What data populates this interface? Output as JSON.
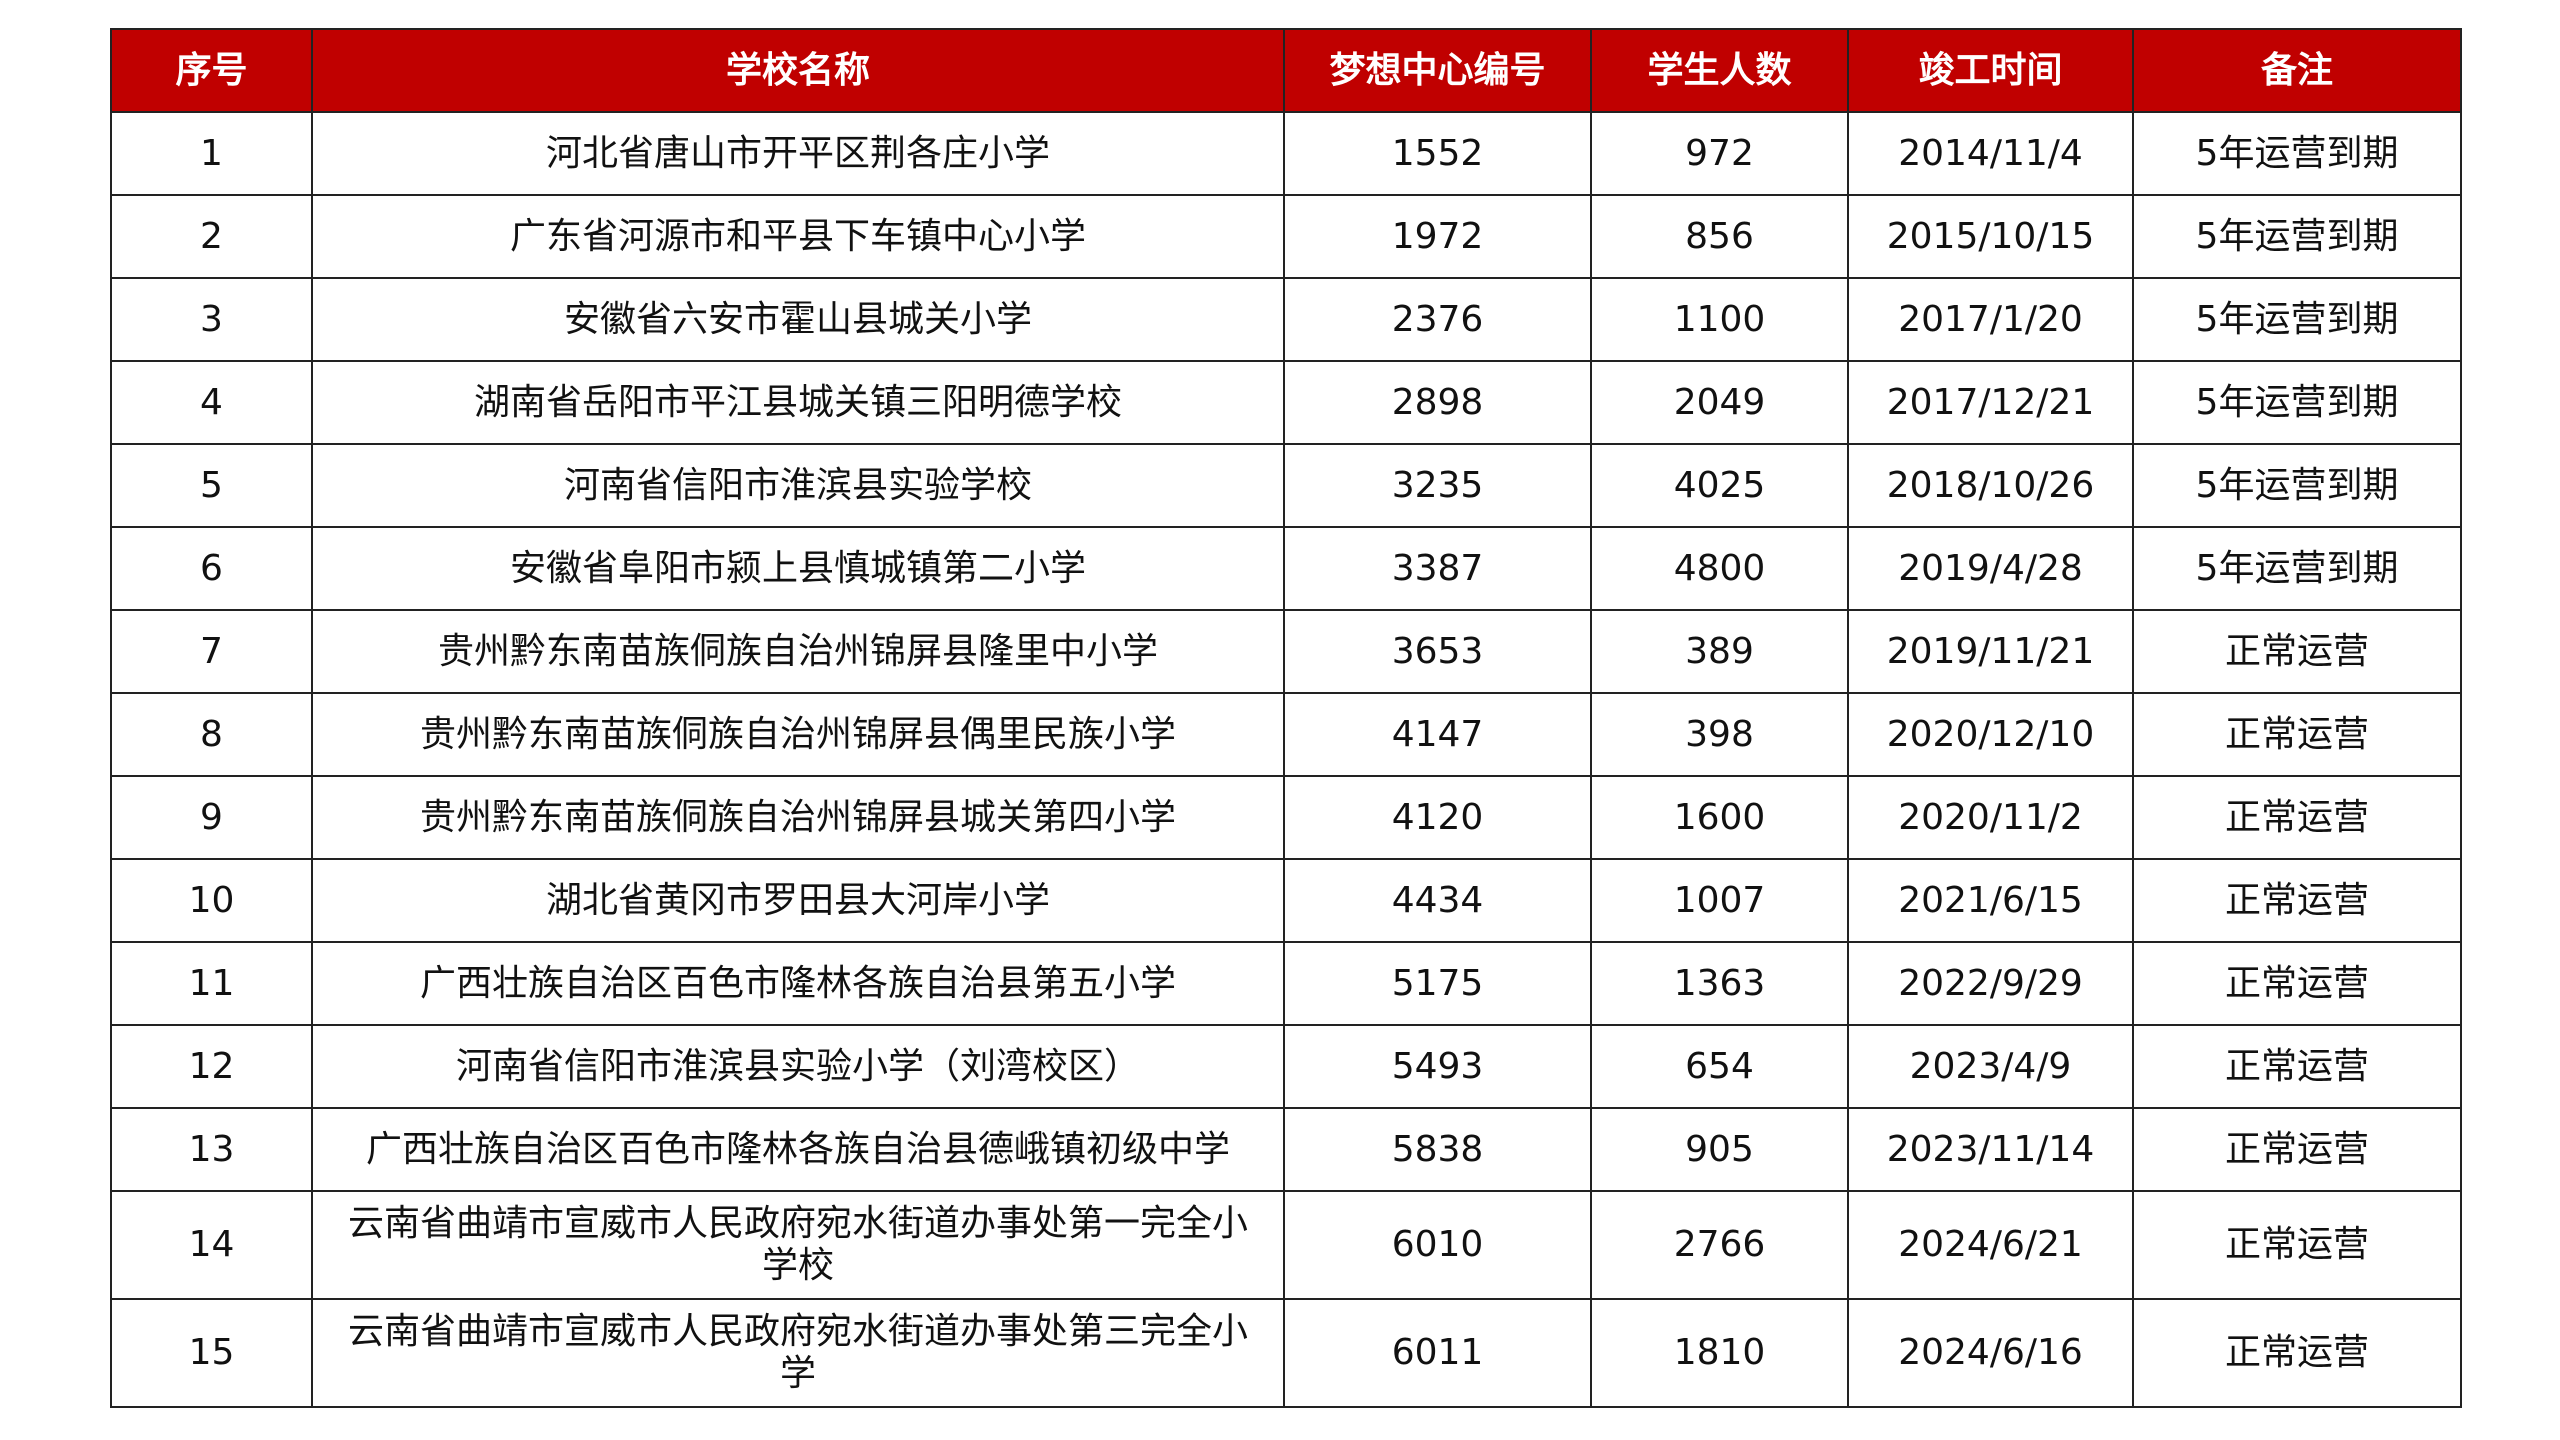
{
  "table": {
    "header": [
      "序号",
      "学校名称",
      "梦想中心编号",
      "学生人数",
      "竣工时间",
      "备注"
    ],
    "rows": [
      [
        1,
        "河北省唐山市开平区荆各庄小学",
        1552,
        972,
        "2014/11/4",
        "5年运营到期"
      ],
      [
        2,
        "广东省河源市和平县下车镇中心小学",
        1972,
        856,
        "2015/10/15",
        "5年运营到期"
      ],
      [
        3,
        "安徽省六安市霍山县城关小学",
        2376,
        1100,
        "2017/1/20",
        "5年运营到期"
      ],
      [
        4,
        "湖南省岳阳市平江县城关镇三阳明德学校",
        2898,
        2049,
        "2017/12/21",
        "5年运营到期"
      ],
      [
        5,
        "河南省信阳市淮滨县实验学校",
        3235,
        4025,
        "2018/10/26",
        "5年运营到期"
      ],
      [
        6,
        "安徽省阜阳市颍上县慎城镇第二小学",
        3387,
        4800,
        "2019/4/28",
        "5年运营到期"
      ],
      [
        7,
        "贵州黔东南苗族侗族自治州锦屏县隆里中小学",
        3653,
        389,
        "2019/11/21",
        "正常运营"
      ],
      [
        8,
        "贵州黔东南苗族侗族自治州锦屏县偶里民族小学",
        4147,
        398,
        "2020/12/10",
        "正常运营"
      ],
      [
        9,
        "贵州黔东南苗族侗族自治州锦屏县城关第四小学",
        4120,
        1600,
        "2020/11/2",
        "正常运营"
      ],
      [
        10,
        "湖北省黄冈市罗田县大河岸小学",
        4434,
        1007,
        "2021/6/15",
        "正常运营"
      ],
      [
        11,
        "广西壮族自治区百色市隆林各族自治县第五小学",
        5175,
        1363,
        "2022/9/29",
        "正常运营"
      ],
      [
        12,
        "河南省信阳市淮滨县实验小学（刘湾校区）",
        5493,
        654,
        "2023/4/9",
        "正常运营"
      ],
      [
        13,
        "广西壮族自治区百色市隆林各族自治县德峨镇初级中学",
        5838,
        905,
        "2023/11/14",
        "正常运营"
      ],
      [
        14,
        "云南省曲靖市宣威市人民政府宛水街道办事处第一完全小学校",
        6010,
        2766,
        "2024/6/21",
        "正常运营"
      ],
      [
        15,
        "云南省曲靖市宣威市人民政府宛水街道办事处第三完全小学",
        6011,
        1810,
        "2024/6/16",
        "正常运营"
      ]
    ]
  }
}
